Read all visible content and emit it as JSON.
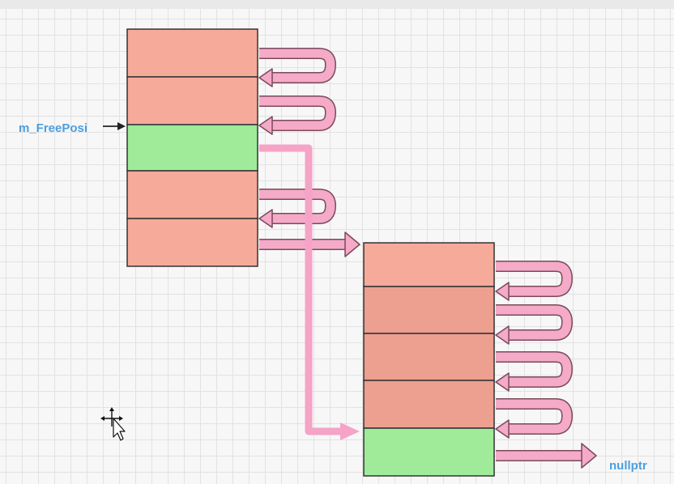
{
  "diagram": {
    "pointer_label": "m_FreePosi",
    "end_label": "nullptr",
    "colors": {
      "used_block": "#f6aa9a",
      "free_block": "#9feb9a",
      "link_arrow": "#f5aac8",
      "label_blue": "#4a9fe0"
    },
    "block1": {
      "cells": [
        "used",
        "used",
        "free",
        "used",
        "used"
      ]
    },
    "block2": {
      "cells": [
        "used",
        "used",
        "used",
        "used",
        "free"
      ]
    }
  },
  "cursor_icon": "move-cursor-icon"
}
